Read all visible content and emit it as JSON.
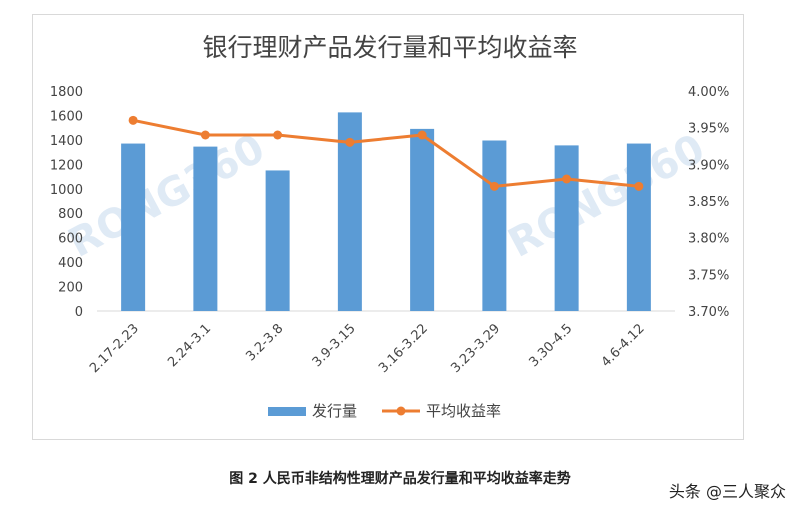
{
  "chart_data": {
    "type": "bar",
    "title": "银行理财产品发行量和平均收益率",
    "categories": [
      "2.17-2.23",
      "2.24-3.1",
      "3.2-3.8",
      "3.9-3.15",
      "3.16-3.22",
      "3.23-3.29",
      "3.30-4.5",
      "4.6-4.12"
    ],
    "series": [
      {
        "name": "发行量",
        "type": "bar",
        "axis": "left",
        "color": "#5b9bd5",
        "values": [
          1370,
          1345,
          1150,
          1625,
          1490,
          1395,
          1355,
          1370
        ]
      },
      {
        "name": "平均收益率",
        "type": "line",
        "axis": "right",
        "color": "#ed7d31",
        "values": [
          3.96,
          3.94,
          3.94,
          3.93,
          3.94,
          3.87,
          3.88,
          3.87
        ]
      }
    ],
    "y_left": {
      "min": 0,
      "max": 1800,
      "ticks": [
        "0",
        "200",
        "400",
        "600",
        "800",
        "1000",
        "1200",
        "1400",
        "1600",
        "1800"
      ]
    },
    "y_right": {
      "min": 3.7,
      "max": 4.0,
      "ticks": [
        "3.70%",
        "3.75%",
        "3.80%",
        "3.85%",
        "3.90%",
        "3.95%",
        "4.00%"
      ]
    },
    "legend_position": "bottom",
    "grid": false,
    "watermark": "RONG360"
  },
  "caption": "图 2 人民币非结构性理财产品发行量和平均收益率走势",
  "credit": "头条 @三人聚众"
}
